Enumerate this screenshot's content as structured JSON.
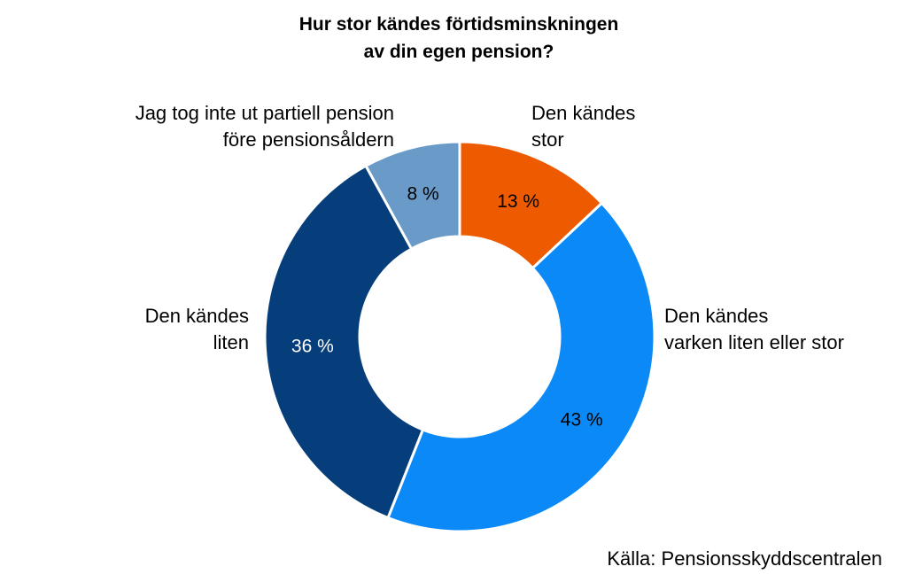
{
  "chart_data": {
    "type": "pie",
    "variant": "donut",
    "title": [
      "Hur stor kändes förtidsminskningen",
      "av din egen pension?"
    ],
    "slices": [
      {
        "label": [
          "Den kändes",
          "stor"
        ],
        "value": 13,
        "display": "13 %",
        "color": "#ED5A00",
        "label_color": "#000000"
      },
      {
        "label": [
          "Den kändes",
          "varken liten eller stor"
        ],
        "value": 43,
        "display": "43 %",
        "color": "#0B8AF7",
        "label_color": "#000000"
      },
      {
        "label": [
          "Den kändes",
          "liten"
        ],
        "value": 36,
        "display": "36 %",
        "color": "#053E7A",
        "label_color": "#FFFFFF"
      },
      {
        "label": [
          "Jag tog inte ut partiell pension",
          "före pensionsåldern"
        ],
        "value": 8,
        "display": "8 %",
        "color": "#6A9AC8",
        "label_color": "#000000"
      }
    ],
    "start_angle_deg": 0,
    "direction": "clockwise",
    "source": "Källa: Pensionsskyddscentralen"
  }
}
